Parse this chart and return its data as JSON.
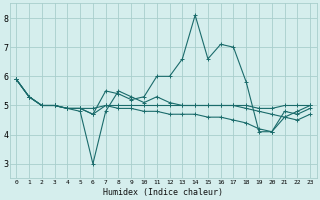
{
  "title": "",
  "xlabel": "Humidex (Indice chaleur)",
  "background_color": "#d5eeed",
  "grid_color": "#a8cecc",
  "line_color": "#1a6b6b",
  "xlim": [
    -0.5,
    23.5
  ],
  "ylim": [
    2.5,
    8.5
  ],
  "yticks": [
    3,
    4,
    5,
    6,
    7,
    8
  ],
  "xtick_labels": [
    "0",
    "1",
    "2",
    "3",
    "4",
    "5",
    "6",
    "7",
    "8",
    "9",
    "10",
    "11",
    "12",
    "13",
    "14",
    "15",
    "16",
    "17",
    "18",
    "19",
    "20",
    "21",
    "22",
    "23"
  ],
  "series": [
    [
      5.9,
      5.3,
      5.0,
      5.0,
      4.9,
      4.9,
      4.7,
      5.5,
      5.4,
      5.2,
      5.3,
      6.0,
      6.0,
      6.6,
      8.1,
      6.6,
      7.1,
      7.0,
      5.8,
      4.1,
      4.1,
      4.8,
      4.7,
      4.9
    ],
    [
      5.9,
      5.3,
      5.0,
      5.0,
      4.9,
      4.8,
      3.0,
      4.8,
      5.5,
      5.3,
      5.1,
      5.3,
      5.1,
      5.0,
      5.0,
      5.0,
      5.0,
      5.0,
      4.9,
      4.8,
      4.7,
      4.6,
      4.5,
      4.7
    ],
    [
      5.9,
      5.3,
      5.0,
      5.0,
      4.9,
      4.9,
      4.7,
      5.0,
      4.9,
      4.9,
      4.8,
      4.8,
      4.7,
      4.7,
      4.7,
      4.6,
      4.6,
      4.5,
      4.4,
      4.2,
      4.1,
      4.6,
      4.8,
      5.0
    ],
    [
      5.9,
      5.3,
      5.0,
      5.0,
      4.9,
      4.9,
      4.9,
      5.0,
      5.0,
      5.0,
      5.0,
      5.0,
      5.0,
      5.0,
      5.0,
      5.0,
      5.0,
      5.0,
      5.0,
      4.9,
      4.9,
      5.0,
      5.0,
      5.0
    ]
  ]
}
